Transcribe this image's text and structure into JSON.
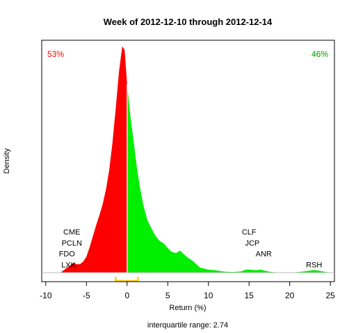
{
  "chart_data": {
    "type": "area",
    "title": "Week of 2012-12-10 through 2012-12-14",
    "xlabel": "Return (%)",
    "ylabel": "Density",
    "subtitle": "interquartile range: 2.74",
    "xlim": [
      -10.5,
      25.5
    ],
    "ylim": [
      0,
      0.19
    ],
    "x_ticks": [
      -10,
      -5,
      0,
      5,
      10,
      15,
      20,
      25
    ],
    "split_at": 0,
    "negative_share_label": "53%",
    "positive_share_label": "46%",
    "colors": {
      "negative": "#ff0000",
      "positive": "#00ee00",
      "iqr": "#ffcc00"
    },
    "iqr": {
      "low": -1.4,
      "high": 1.34
    },
    "density_curve": {
      "x": [
        -8.2,
        -7.8,
        -7.4,
        -7.0,
        -6.6,
        -6.2,
        -5.8,
        -5.4,
        -5.0,
        -4.6,
        -4.2,
        -3.8,
        -3.4,
        -3.0,
        -2.6,
        -2.2,
        -1.8,
        -1.4,
        -1.0,
        -0.6,
        -0.3,
        0.0,
        0.4,
        0.8,
        1.2,
        1.6,
        2.0,
        2.5,
        3.0,
        3.5,
        4.0,
        4.5,
        5.0,
        5.5,
        6.0,
        6.5,
        7.0,
        7.5,
        8.0,
        8.5,
        9.0,
        10.0,
        11.0,
        12.0,
        13.0,
        14.0,
        14.6,
        15.2,
        15.8,
        16.4,
        17.0,
        17.6,
        18.5,
        19.5,
        20.5,
        21.5,
        22.3,
        22.8,
        23.2,
        23.7,
        24.2,
        24.8,
        25.2
      ],
      "y": [
        0,
        0.002,
        0.004,
        0.006,
        0.008,
        0.007,
        0.007,
        0.009,
        0.013,
        0.021,
        0.03,
        0.039,
        0.047,
        0.056,
        0.068,
        0.084,
        0.106,
        0.134,
        0.164,
        0.185,
        0.182,
        0.154,
        0.128,
        0.108,
        0.086,
        0.069,
        0.055,
        0.043,
        0.036,
        0.03,
        0.026,
        0.024,
        0.02,
        0.017,
        0.016,
        0.018,
        0.015,
        0.012,
        0.01,
        0.007,
        0.004,
        0.0025,
        0.0018,
        0.0008,
        0.0005,
        0.001,
        0.0025,
        0.0025,
        0.002,
        0.0025,
        0.0015,
        0.0006,
        0.0002,
        0.0001,
        0.0002,
        0.0008,
        0.0015,
        0.002,
        0.002,
        0.0015,
        0.0008,
        0.0002,
        0
      ]
    },
    "annotations": [
      {
        "text": "CME",
        "x": -6.8,
        "y": 0.0335
      },
      {
        "text": "PCLN",
        "x": -6.8,
        "y": 0.0245
      },
      {
        "text": "FDO",
        "x": -7.4,
        "y": 0.0155
      },
      {
        "text": "LXK",
        "x": -7.2,
        "y": 0.0065
      },
      {
        "text": "CLF",
        "x": 15.0,
        "y": 0.0335
      },
      {
        "text": "JCP",
        "x": 15.4,
        "y": 0.0245
      },
      {
        "text": "ANR",
        "x": 16.8,
        "y": 0.0155
      },
      {
        "text": "RSH",
        "x": 23.0,
        "y": 0.0065
      }
    ]
  }
}
